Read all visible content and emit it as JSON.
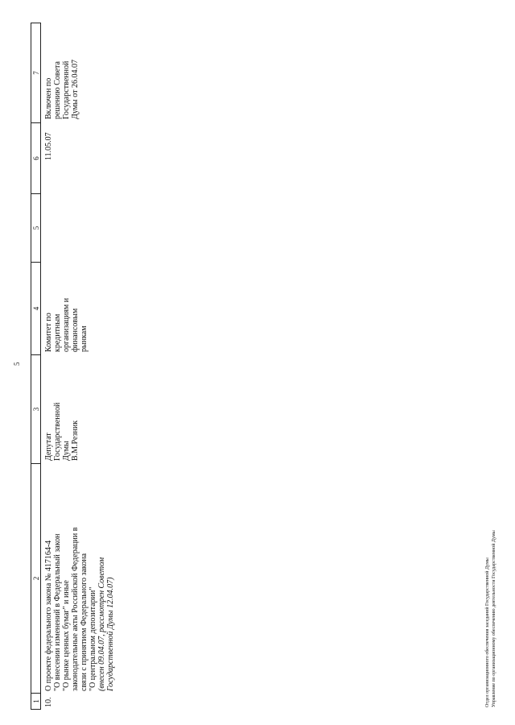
{
  "page_number": "5",
  "table": {
    "header": [
      "1",
      "2",
      "3",
      "4",
      "5",
      "6",
      "7"
    ],
    "row": {
      "number": "10.",
      "title_lines": [
        "О проекте федерального закона № 417164-4",
        "\"О внесении изменений в Федеральный закон",
        "\"О рынке ценных бумаг\" и иные",
        "законодательные акты Российской Федерации в",
        "связи с принятием Федерального закона",
        "\"О центральном депозитарии\""
      ],
      "note_lines": [
        "(внесен 09.04.07, рассмотрен Советом",
        "Государственной Думы 12.04.07)"
      ],
      "author_lines": [
        "Депутат",
        "Государственной",
        "Думы",
        "В.М.Резник"
      ],
      "committee_lines": [
        "Комитет по",
        "кредитным",
        "организациям и",
        "финансовым",
        "рынкам"
      ],
      "col5": [],
      "date": "11.05.07",
      "status_lines": [
        "Включен по",
        "решению Совета",
        "Государственной",
        "Думы от 26.04.07"
      ]
    }
  },
  "footer": [
    "Отдел организационного обеспечения заседаний Государственной Думы",
    "Управление по организационному обеспечению деятельности Государственной Думы"
  ]
}
